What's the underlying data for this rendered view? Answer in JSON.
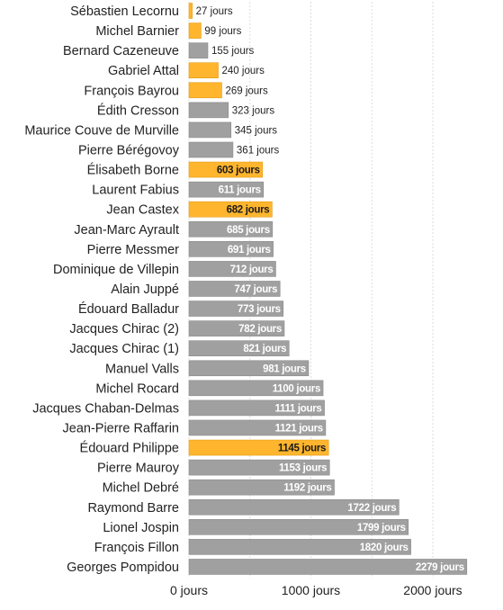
{
  "chart_data": {
    "type": "bar",
    "orientation": "horizontal",
    "unit_suffix": " jours",
    "grid": true,
    "xlim": [
      0,
      2300
    ],
    "x_ticks": [
      {
        "value": 0,
        "label": "0 jours"
      },
      {
        "value": 1000,
        "label": "1000 jours"
      },
      {
        "value": 2000,
        "label": "2000 jours"
      }
    ],
    "colors": {
      "gray": "#a0a0a0",
      "highlight": "#ffb62e",
      "grid": "#dddddd"
    },
    "categories": [
      "Sébastien Lecornu",
      "Michel Barnier",
      "Bernard Cazeneuve",
      "Gabriel Attal",
      "François Bayrou",
      "Édith Cresson",
      "Maurice Couve de Murville",
      "Pierre Bérégovoy",
      "Élisabeth Borne",
      "Laurent Fabius",
      "Jean Castex",
      "Jean-Marc Ayrault",
      "Pierre Messmer",
      "Dominique de Villepin",
      "Alain Juppé",
      "Édouard Balladur",
      "Jacques Chirac (2)",
      "Jacques Chirac (1)",
      "Manuel Valls",
      "Michel Rocard",
      "Jacques Chaban-Delmas",
      "Jean-Pierre Raffarin",
      "Édouard Philippe",
      "Pierre Mauroy",
      "Michel Debré",
      "Raymond Barre",
      "Lionel Jospin",
      "François Fillon",
      "Georges Pompidou"
    ],
    "values": [
      27,
      99,
      155,
      240,
      269,
      323,
      345,
      361,
      603,
      611,
      682,
      685,
      691,
      712,
      747,
      773,
      782,
      821,
      981,
      1100,
      1111,
      1121,
      1145,
      1153,
      1192,
      1722,
      1799,
      1820,
      2279
    ],
    "data_labels": [
      "27 jours",
      "99 jours",
      "155 jours",
      "240 jours",
      "269 jours",
      "323 jours",
      "345 jours",
      "361 jours",
      "603 jours",
      "611 jours",
      "682 jours",
      "685 jours",
      "691 jours",
      "712 jours",
      "747 jours",
      "773 jours",
      "782 jours",
      "821 jours",
      "981 jours",
      "1100 jours",
      "1111 jours",
      "1121 jours",
      "1145 jours",
      "1153 jours",
      "1192 jours",
      "1722 jours",
      "1799 jours",
      "1820 jours",
      "2279 jours"
    ],
    "highlighted": [
      true,
      true,
      false,
      true,
      true,
      false,
      false,
      false,
      true,
      false,
      true,
      false,
      false,
      false,
      false,
      false,
      false,
      false,
      false,
      false,
      false,
      false,
      true,
      false,
      false,
      false,
      false,
      false,
      false
    ]
  }
}
